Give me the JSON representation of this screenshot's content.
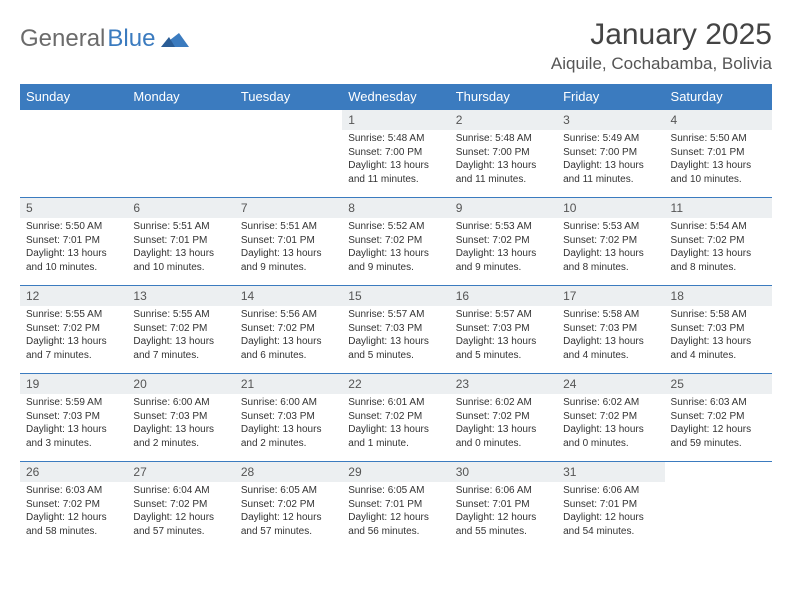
{
  "brand": {
    "word1": "General",
    "word2": "Blue"
  },
  "colors": {
    "accent": "#3b7bbf",
    "header_text": "#ffffff",
    "daynum_bg": "#eceff1",
    "border": "#3b7bbf",
    "logo_gray": "#6b6b6b"
  },
  "title": "January 2025",
  "location": "Aiquile, Cochabamba, Bolivia",
  "weekdays": [
    "Sunday",
    "Monday",
    "Tuesday",
    "Wednesday",
    "Thursday",
    "Friday",
    "Saturday"
  ],
  "fonts": {
    "title_size": 30,
    "location_size": 17,
    "weekday_size": 13,
    "daynum_size": 12,
    "body_size": 10
  },
  "weeks": [
    [
      null,
      null,
      null,
      {
        "n": "1",
        "sr": "5:48 AM",
        "ss": "7:00 PM",
        "dl": "13 hours and 11 minutes."
      },
      {
        "n": "2",
        "sr": "5:48 AM",
        "ss": "7:00 PM",
        "dl": "13 hours and 11 minutes."
      },
      {
        "n": "3",
        "sr": "5:49 AM",
        "ss": "7:00 PM",
        "dl": "13 hours and 11 minutes."
      },
      {
        "n": "4",
        "sr": "5:50 AM",
        "ss": "7:01 PM",
        "dl": "13 hours and 10 minutes."
      }
    ],
    [
      {
        "n": "5",
        "sr": "5:50 AM",
        "ss": "7:01 PM",
        "dl": "13 hours and 10 minutes."
      },
      {
        "n": "6",
        "sr": "5:51 AM",
        "ss": "7:01 PM",
        "dl": "13 hours and 10 minutes."
      },
      {
        "n": "7",
        "sr": "5:51 AM",
        "ss": "7:01 PM",
        "dl": "13 hours and 9 minutes."
      },
      {
        "n": "8",
        "sr": "5:52 AM",
        "ss": "7:02 PM",
        "dl": "13 hours and 9 minutes."
      },
      {
        "n": "9",
        "sr": "5:53 AM",
        "ss": "7:02 PM",
        "dl": "13 hours and 9 minutes."
      },
      {
        "n": "10",
        "sr": "5:53 AM",
        "ss": "7:02 PM",
        "dl": "13 hours and 8 minutes."
      },
      {
        "n": "11",
        "sr": "5:54 AM",
        "ss": "7:02 PM",
        "dl": "13 hours and 8 minutes."
      }
    ],
    [
      {
        "n": "12",
        "sr": "5:55 AM",
        "ss": "7:02 PM",
        "dl": "13 hours and 7 minutes."
      },
      {
        "n": "13",
        "sr": "5:55 AM",
        "ss": "7:02 PM",
        "dl": "13 hours and 7 minutes."
      },
      {
        "n": "14",
        "sr": "5:56 AM",
        "ss": "7:02 PM",
        "dl": "13 hours and 6 minutes."
      },
      {
        "n": "15",
        "sr": "5:57 AM",
        "ss": "7:03 PM",
        "dl": "13 hours and 5 minutes."
      },
      {
        "n": "16",
        "sr": "5:57 AM",
        "ss": "7:03 PM",
        "dl": "13 hours and 5 minutes."
      },
      {
        "n": "17",
        "sr": "5:58 AM",
        "ss": "7:03 PM",
        "dl": "13 hours and 4 minutes."
      },
      {
        "n": "18",
        "sr": "5:58 AM",
        "ss": "7:03 PM",
        "dl": "13 hours and 4 minutes."
      }
    ],
    [
      {
        "n": "19",
        "sr": "5:59 AM",
        "ss": "7:03 PM",
        "dl": "13 hours and 3 minutes."
      },
      {
        "n": "20",
        "sr": "6:00 AM",
        "ss": "7:03 PM",
        "dl": "13 hours and 2 minutes."
      },
      {
        "n": "21",
        "sr": "6:00 AM",
        "ss": "7:03 PM",
        "dl": "13 hours and 2 minutes."
      },
      {
        "n": "22",
        "sr": "6:01 AM",
        "ss": "7:02 PM",
        "dl": "13 hours and 1 minute."
      },
      {
        "n": "23",
        "sr": "6:02 AM",
        "ss": "7:02 PM",
        "dl": "13 hours and 0 minutes."
      },
      {
        "n": "24",
        "sr": "6:02 AM",
        "ss": "7:02 PM",
        "dl": "13 hours and 0 minutes."
      },
      {
        "n": "25",
        "sr": "6:03 AM",
        "ss": "7:02 PM",
        "dl": "12 hours and 59 minutes."
      }
    ],
    [
      {
        "n": "26",
        "sr": "6:03 AM",
        "ss": "7:02 PM",
        "dl": "12 hours and 58 minutes."
      },
      {
        "n": "27",
        "sr": "6:04 AM",
        "ss": "7:02 PM",
        "dl": "12 hours and 57 minutes."
      },
      {
        "n": "28",
        "sr": "6:05 AM",
        "ss": "7:02 PM",
        "dl": "12 hours and 57 minutes."
      },
      {
        "n": "29",
        "sr": "6:05 AM",
        "ss": "7:01 PM",
        "dl": "12 hours and 56 minutes."
      },
      {
        "n": "30",
        "sr": "6:06 AM",
        "ss": "7:01 PM",
        "dl": "12 hours and 55 minutes."
      },
      {
        "n": "31",
        "sr": "6:06 AM",
        "ss": "7:01 PM",
        "dl": "12 hours and 54 minutes."
      },
      null
    ]
  ],
  "labels": {
    "sunrise": "Sunrise:",
    "sunset": "Sunset:",
    "daylight": "Daylight:"
  }
}
